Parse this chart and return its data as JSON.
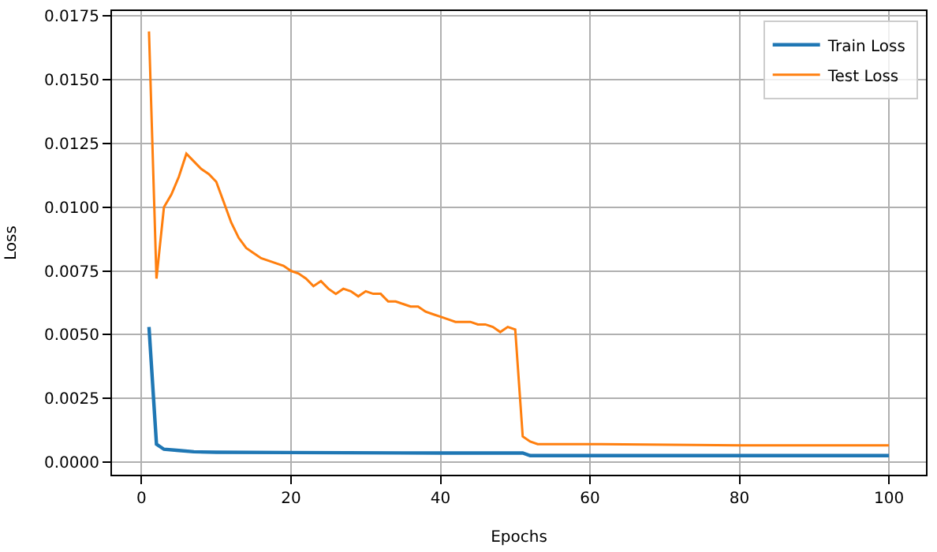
{
  "chart_data": {
    "type": "line",
    "xlabel": "Epochs",
    "ylabel": "Loss",
    "xlim": [
      -3.95,
      104.95
    ],
    "xticks": [
      0,
      20,
      40,
      60,
      80,
      100
    ],
    "ylim": [
      -0.0005,
      0.0177
    ],
    "yticks": [
      {
        "value": 0,
        "label": "0.0000"
      },
      {
        "value": 0.0025,
        "label": "0.0025"
      },
      {
        "value": 0.005,
        "label": "0.0050"
      },
      {
        "value": 0.0075,
        "label": "0.0075"
      },
      {
        "value": 0.01,
        "label": "0.0100"
      },
      {
        "value": 0.0125,
        "label": "0.0125"
      },
      {
        "value": 0.015,
        "label": "0.0150"
      },
      {
        "value": 0.0175,
        "label": "0.0175"
      }
    ],
    "grid": true,
    "legend": "top right",
    "marker": "none",
    "line_style": "solid",
    "series": [
      {
        "name": "Train Loss",
        "color": "#1f77b4",
        "x": [
          1,
          2,
          3,
          5,
          7,
          10,
          20,
          40,
          50,
          51,
          52,
          60,
          80,
          100
        ],
        "values": [
          0.0053,
          0.0007,
          0.0005,
          0.00045,
          0.0004,
          0.00038,
          0.00037,
          0.00035,
          0.00035,
          0.00035,
          0.00025,
          0.00025,
          0.00025,
          0.00025
        ]
      },
      {
        "name": "Test Loss",
        "color": "#ff7f0e",
        "x": [
          1,
          2,
          3,
          4,
          5,
          6,
          7,
          8,
          9,
          10,
          11,
          12,
          13,
          14,
          15,
          16,
          17,
          18,
          19,
          20,
          21,
          22,
          23,
          24,
          25,
          26,
          27,
          28,
          29,
          30,
          31,
          32,
          33,
          34,
          35,
          36,
          37,
          38,
          39,
          40,
          41,
          42,
          43,
          44,
          45,
          46,
          47,
          48,
          49,
          50,
          51,
          52,
          53,
          55,
          60,
          80,
          100
        ],
        "values": [
          0.0169,
          0.0072,
          0.01,
          0.0105,
          0.0112,
          0.0121,
          0.0118,
          0.0115,
          0.0113,
          0.011,
          0.0102,
          0.0094,
          0.0088,
          0.0084,
          0.0082,
          0.008,
          0.0079,
          0.0078,
          0.0077,
          0.0075,
          0.0074,
          0.0072,
          0.0069,
          0.0071,
          0.0068,
          0.0066,
          0.0068,
          0.0067,
          0.0065,
          0.0067,
          0.0066,
          0.0066,
          0.0063,
          0.0063,
          0.0062,
          0.0061,
          0.0061,
          0.0059,
          0.0058,
          0.0057,
          0.0056,
          0.0055,
          0.0055,
          0.0055,
          0.0054,
          0.0054,
          0.0053,
          0.0051,
          0.0053,
          0.0052,
          0.001,
          0.0008,
          0.0007,
          0.0007,
          0.0007,
          0.00065,
          0.00065
        ]
      }
    ]
  }
}
